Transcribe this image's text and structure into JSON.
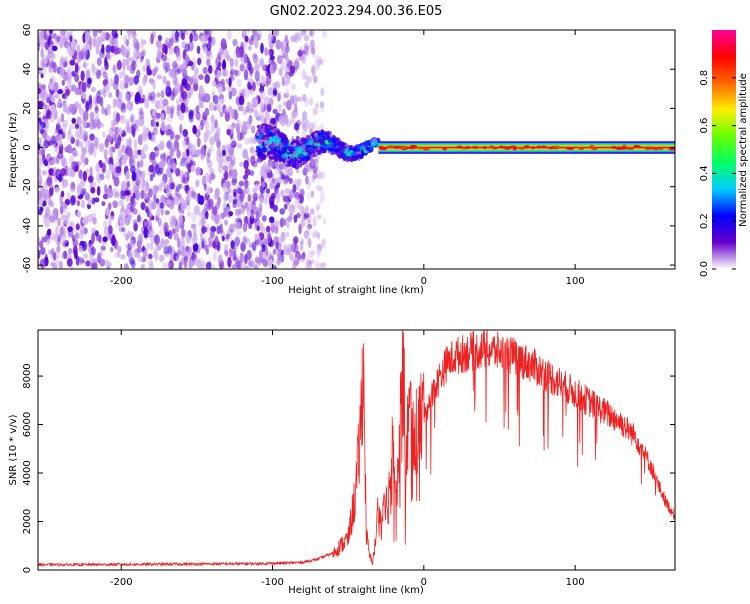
{
  "title": "GN02.2023.294.00.36.E05",
  "chart_data": [
    {
      "type": "heatmap",
      "xlabel": "Height of straight line (km)",
      "ylabel": "Frequency (Hz)",
      "xlim": [
        -255,
        166
      ],
      "ylim": [
        -62,
        60
      ],
      "xticks": [
        -200,
        -100,
        0,
        100
      ],
      "yticks": [
        60,
        40,
        20,
        0,
        -20,
        -40,
        -60
      ],
      "colorbar": {
        "label": "Normalized spectral amplitude",
        "range": [
          0,
          1
        ],
        "ticks": [
          "0.0",
          "0.2",
          "0.4",
          "0.6",
          "0.8"
        ],
        "colors": [
          "#ffffff",
          "#6600cc",
          "#0000ff",
          "#00ccff",
          "#00ff66",
          "#66ff00",
          "#ffee00",
          "#ff6600",
          "#ff0000",
          "#ff0099"
        ]
      },
      "features": [
        {
          "x_range": [
            -255,
            -75
          ],
          "y_range": [
            -62,
            60
          ],
          "amplitude": 0.08,
          "description": "broadband noise"
        },
        {
          "x_range": [
            -110,
            -30
          ],
          "y_center": 0,
          "amplitude": 0.45,
          "description": "scattered signal onset"
        },
        {
          "x_range": [
            -30,
            166
          ],
          "y_center": 0,
          "half_width_hz": 2,
          "amplitude": 0.9,
          "description": "narrow carrier line"
        }
      ]
    },
    {
      "type": "line",
      "xlabel": "Height of straight line (km)",
      "ylabel": "SNR (10 * v/v)",
      "xlim": [
        -255,
        166
      ],
      "ylim": [
        0,
        9900
      ],
      "xticks": [
        -200,
        -100,
        0,
        100
      ],
      "yticks": [
        0,
        2000,
        4000,
        6000,
        8000
      ],
      "color": "#ee2222",
      "series": [
        {
          "x": [
            -255,
            -230,
            -200,
            -170,
            -140,
            -110,
            -90,
            -80,
            -70,
            -60,
            -50,
            -45,
            -42,
            -40,
            -38,
            -36,
            -34,
            -32,
            -30,
            -28,
            -26,
            -24,
            -22,
            -20,
            -18,
            -16,
            -14,
            -12,
            -10,
            -5,
            0,
            5,
            10,
            15,
            20,
            30,
            40,
            50,
            60,
            70,
            80,
            90,
            100,
            110,
            120,
            130,
            140,
            145,
            150,
            155,
            160,
            166
          ],
          "y": [
            220,
            220,
            230,
            240,
            250,
            260,
            290,
            320,
            450,
            700,
            1300,
            3200,
            5500,
            8800,
            1500,
            600,
            300,
            1100,
            2800,
            1800,
            3500,
            2400,
            4200,
            6100,
            3200,
            5200,
            9900,
            4300,
            6400,
            5700,
            6500,
            7100,
            7900,
            8500,
            8800,
            9000,
            9100,
            9000,
            8800,
            8500,
            8100,
            7700,
            7300,
            6900,
            6500,
            6100,
            5500,
            4900,
            4300,
            3500,
            2800,
            2200
          ]
        }
      ]
    }
  ]
}
